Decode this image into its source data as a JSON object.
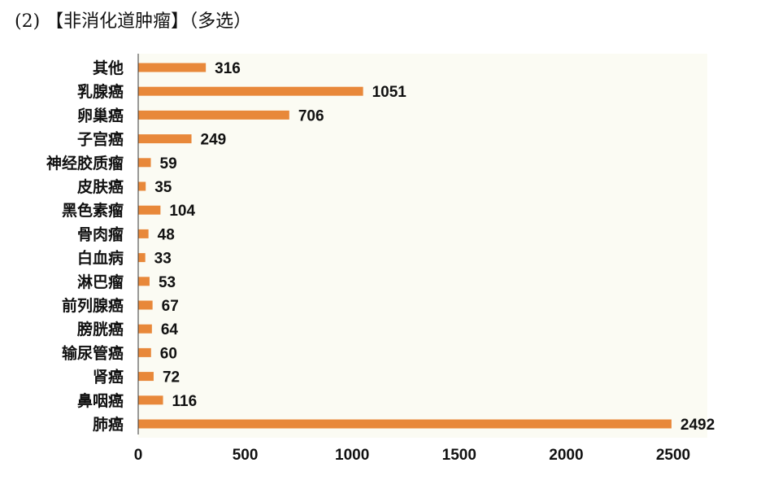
{
  "heading": "(2) 【非消化道肿瘤】（多选）",
  "chart_data": {
    "type": "bar",
    "orientation": "horizontal",
    "title": "",
    "xlabel": "",
    "ylabel": "",
    "categories": [
      "其他",
      "乳腺癌",
      "卵巢癌",
      "子宫癌",
      "神经胶质瘤",
      "皮肤癌",
      "黑色素瘤",
      "骨肉瘤",
      "白血病",
      "淋巴瘤",
      "前列腺癌",
      "膀胱癌",
      "输尿管癌",
      "肾癌",
      "鼻咽癌",
      "肺癌"
    ],
    "values": [
      316,
      1051,
      706,
      249,
      59,
      35,
      104,
      48,
      33,
      53,
      67,
      64,
      60,
      72,
      116,
      2492
    ],
    "xlim": [
      0,
      2500
    ],
    "xticks": [
      0,
      500,
      1000,
      1500,
      2000,
      2500
    ],
    "bar_color": "#E8883A",
    "grid": false,
    "legend": "none"
  }
}
